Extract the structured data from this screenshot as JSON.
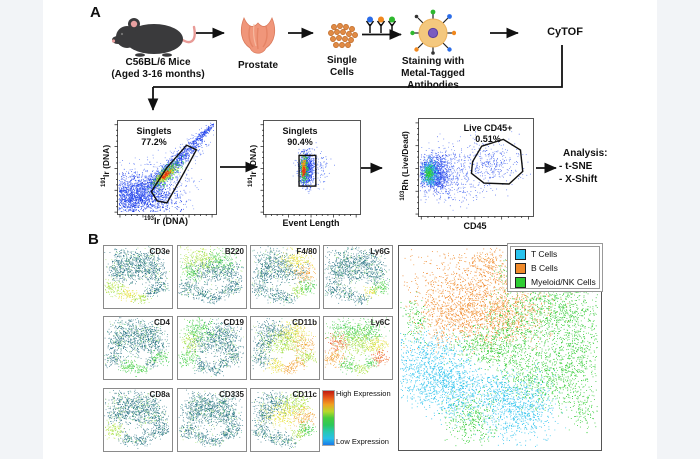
{
  "panel_a": {
    "label": "A",
    "mice_caption": [
      "C56BL/6 Mice",
      "(Aged 3-16 months)"
    ],
    "prostate_caption": "Prostate",
    "cells_caption": [
      "Single",
      "Cells"
    ],
    "staining_caption": [
      "Staining with",
      "Metal-Tagged",
      "Antibodies"
    ],
    "cytof_label": "CyTOF",
    "analysis": {
      "title": "Analysis:",
      "items": [
        "- t-SNE",
        "- X-Shift"
      ]
    }
  },
  "panel_b": {
    "label": "B"
  },
  "chart_data": {
    "flow_plots": [
      {
        "type": "scatter",
        "subtype": "density-flow",
        "gate_label": "Singlets",
        "gate_value": "77.2%",
        "xlabel": {
          "sup": "193",
          "text": "Ir (DNA)"
        },
        "ylabel": {
          "sup": "191",
          "text": "Ir (DNA)"
        },
        "clusters": [
          [
            "blueL",
            0.3,
            0.72,
            0.34,
            0.22,
            0,
            500
          ],
          [
            "blue",
            0.2,
            0.82,
            0.3,
            0.16,
            0,
            1600
          ],
          [
            "blue",
            0.55,
            0.5,
            0.36,
            0.05,
            -44,
            800
          ],
          [
            "blueL",
            0.58,
            0.47,
            0.4,
            0.09,
            -44,
            300
          ],
          [
            "blue",
            0.88,
            0.14,
            0.14,
            0.02,
            -44,
            160
          ],
          [
            "green",
            0.5,
            0.58,
            0.17,
            0.05,
            -44,
            330
          ],
          [
            "yellow",
            0.49,
            0.59,
            0.1,
            0.032,
            -44,
            200
          ],
          [
            "red",
            0.485,
            0.595,
            0.05,
            0.018,
            -44,
            90
          ]
        ],
        "gate": {
          "shape": "polygon",
          "points": [
            [
              0.4,
              0.86
            ],
            [
              0.34,
              0.76
            ],
            [
              0.5,
              0.5
            ],
            [
              0.7,
              0.26
            ],
            [
              0.8,
              0.31
            ],
            [
              0.65,
              0.6
            ],
            [
              0.5,
              0.88
            ]
          ]
        }
      },
      {
        "type": "scatter",
        "subtype": "density-flow",
        "gate_label": "Singlets",
        "gate_value": "90.4%",
        "xlabel": {
          "sup": "",
          "text": "Event Length"
        },
        "ylabel": {
          "sup": "191",
          "text": "Ir (DNA)"
        },
        "clusters": [
          [
            "blueL",
            0.5,
            0.52,
            0.13,
            0.16,
            0,
            280
          ],
          [
            "blue",
            0.445,
            0.52,
            0.055,
            0.13,
            0,
            650
          ],
          [
            "green",
            0.425,
            0.52,
            0.03,
            0.1,
            0,
            260
          ],
          [
            "orange",
            0.42,
            0.5,
            0.018,
            0.065,
            0,
            120
          ],
          [
            "red",
            0.42,
            0.54,
            0.012,
            0.045,
            0,
            70
          ]
        ],
        "gate": {
          "shape": "rect",
          "rect": [
            0.365,
            0.37,
            0.175,
            0.33
          ]
        }
      },
      {
        "type": "scatter",
        "subtype": "density-flow",
        "gate_label": "Live CD45+",
        "gate_value": "0.51%",
        "xlabel": {
          "sup": "",
          "text": "CD45"
        },
        "ylabel": {
          "sup": "103",
          "text": "Rh (Live/Dead)"
        },
        "clusters": [
          [
            "blue",
            0.13,
            0.57,
            0.1,
            0.14,
            0,
            950
          ],
          [
            "blueL",
            0.25,
            0.55,
            0.22,
            0.18,
            0,
            350
          ],
          [
            "cyan",
            0.095,
            0.57,
            0.05,
            0.095,
            0,
            330
          ],
          [
            "green",
            0.085,
            0.565,
            0.028,
            0.055,
            0,
            160
          ],
          [
            "blueS",
            0.55,
            0.48,
            0.3,
            0.22,
            0,
            260
          ],
          [
            "blueS",
            0.68,
            0.45,
            0.16,
            0.13,
            0,
            150
          ],
          [
            "blueS",
            0.3,
            0.8,
            0.25,
            0.1,
            0,
            90
          ]
        ],
        "gate": {
          "shape": "polygon",
          "points": [
            [
              0.47,
              0.44
            ],
            [
              0.55,
              0.28
            ],
            [
              0.74,
              0.21
            ],
            [
              0.89,
              0.32
            ],
            [
              0.91,
              0.54
            ],
            [
              0.79,
              0.67
            ],
            [
              0.57,
              0.66
            ],
            [
              0.46,
              0.56
            ]
          ]
        }
      }
    ],
    "flow_palette": {
      "blue": [
        "#1a3cf0",
        "#2348f0",
        "#2f55f2",
        "#1a30d8"
      ],
      "blueL": [
        "#5578f5",
        "#6f8cf7",
        "#4060f0"
      ],
      "blueS": [
        "#4565f2",
        "#6080f5",
        "#3a55e8"
      ],
      "green": [
        "#28c838",
        "#3ad040"
      ],
      "yellow": [
        "#e8e428",
        "#f0d820"
      ],
      "orange": [
        "#f09818",
        "#f5a822"
      ],
      "red": [
        "#e82810",
        "#f03818"
      ],
      "cyan": [
        "#28b8e8",
        "#30c8e0"
      ]
    },
    "tsne_markers": {
      "type": "scatter",
      "blobs": [
        [
          0.33,
          0.22,
          0.205,
          0.145,
          230
        ],
        [
          0.66,
          0.24,
          0.185,
          0.135,
          200
        ],
        [
          0.5,
          0.43,
          0.24,
          0.145,
          260
        ],
        [
          0.19,
          0.43,
          0.115,
          0.115,
          110
        ],
        [
          0.8,
          0.46,
          0.125,
          0.115,
          110
        ],
        [
          0.14,
          0.69,
          0.125,
          0.105,
          115
        ],
        [
          0.37,
          0.81,
          0.105,
          0.085,
          90
        ],
        [
          0.56,
          0.87,
          0.09,
          0.07,
          65
        ],
        [
          0.71,
          0.75,
          0.085,
          0.07,
          60
        ],
        [
          0.85,
          0.67,
          0.1,
          0.09,
          90
        ]
      ],
      "palette": {
        "dark": [
          "#1d6a7c",
          "#256f80",
          "#1a5f72",
          "#2c7a8c",
          "#226d7e",
          "#35889a",
          "#1d6a7c",
          "#2a7585",
          "#1a5f72",
          "#256f80",
          "#57c08a",
          "#9adf63"
        ],
        "green": [
          "#35cc3f",
          "#4cd348",
          "#2fc04a",
          "#63d94a"
        ],
        "ygreen": [
          "#9edc38",
          "#b4e43c",
          "#86d53e",
          "#c5ea42"
        ],
        "yellow": [
          "#e2e23e",
          "#ead83a",
          "#d5e542",
          "#f0e030"
        ],
        "orange": [
          "#f2a232",
          "#f5b03c",
          "#ea8f28",
          "#f0982a"
        ],
        "rorange": [
          "#ee6a28",
          "#e65020",
          "#f28334",
          "#e84018"
        ],
        "cyanb": [
          "#35c4e8",
          "#2ab8e0"
        ]
      },
      "plots": [
        {
          "label": "CD3e",
          "colors": [
            "dark",
            "dark",
            "dark",
            "dark",
            "dark",
            "ygreen",
            "yellow",
            "ygreen",
            "dark",
            "dark"
          ]
        },
        {
          "label": "B220",
          "colors": [
            "ygreen",
            "green",
            "dark",
            "green",
            "dark",
            "dark",
            "dark",
            "dark",
            "dark",
            "dark"
          ]
        },
        {
          "label": "F4/80",
          "colors": [
            "dark",
            "yellow",
            "dark",
            "dark",
            "orange",
            "dark",
            "dark",
            "dark",
            "ygreen",
            "green"
          ]
        },
        {
          "label": "Ly6G",
          "colors": [
            "dark",
            "dark",
            "dark",
            "dark",
            "dark",
            "dark",
            "dark",
            "dark",
            "yellow",
            "green"
          ]
        },
        {
          "label": "CD4",
          "colors": [
            "dark",
            "dark",
            "dark",
            "dark",
            "dark",
            "dark",
            "green",
            "green",
            "dark",
            "green"
          ]
        },
        {
          "label": "CD19",
          "colors": [
            "green",
            "dark",
            "dark",
            "ygreen",
            "dark",
            "green",
            "dark",
            "dark",
            "dark",
            "dark"
          ]
        },
        {
          "label": "CD11b",
          "colors": [
            "dark",
            "yellow",
            "ygreen",
            "dark",
            "orange",
            "dark",
            "yellow",
            "orange",
            "orange",
            "ygreen"
          ]
        },
        {
          "label": "Ly6C",
          "colors": [
            "green",
            "green",
            "ygreen",
            "rorange",
            "yellow",
            "orange",
            "green",
            "ygreen",
            "green",
            "rorange"
          ]
        },
        {
          "label": "CD8a",
          "colors": [
            "dark",
            "dark",
            "dark",
            "dark",
            "dark",
            "ygreen",
            "dark",
            "dark",
            "dark",
            "dark"
          ]
        },
        {
          "label": "CD335",
          "colors": [
            "dark",
            "dark",
            "dark",
            "dark",
            "dark",
            "dark",
            "dark",
            "dark",
            "dark",
            "dark"
          ]
        },
        {
          "label": "CD11c",
          "colors": [
            "dark",
            "ygreen",
            "yellow",
            "dark",
            "orange",
            "dark",
            "dark",
            "dark",
            "ygreen",
            "green"
          ]
        }
      ]
    },
    "colorbar": {
      "high_label": "High Expression",
      "low_label": "Low Expression",
      "gradient": [
        "#c01a10",
        "#e85a1a",
        "#f0a020",
        "#b8d82a",
        "#48cc3c",
        "#2cc85a",
        "#26c8b0",
        "#28c0e8",
        "#1a78e8"
      ]
    },
    "tsne_main": {
      "type": "scatter",
      "legend": [
        {
          "label": "T Cells",
          "color": "#29c3ee"
        },
        {
          "label": "B Cells",
          "color": "#f08a2b"
        },
        {
          "label": "Myeloid/NK Cells",
          "color": "#2ecd33"
        }
      ],
      "clusters": [
        {
          "color": "#f08a2b",
          "shades": [
            "#f08a2b",
            "#ee8124",
            "#f29a3c"
          ],
          "ellipses": [
            [
              0.41,
              0.25,
              0.26,
              0.17,
              1500
            ],
            [
              0.27,
              0.34,
              0.13,
              0.1,
              350
            ],
            [
              0.52,
              0.36,
              0.13,
              0.09,
              300
            ],
            [
              0.44,
              0.08,
              0.07,
              0.04,
              90
            ]
          ]
        },
        {
          "color": "#2ecd33",
          "shades": [
            "#2ecd33",
            "#27c22c",
            "#42d63f"
          ],
          "ellipses": [
            [
              0.76,
              0.28,
              0.19,
              0.13,
              700
            ],
            [
              0.86,
              0.52,
              0.13,
              0.18,
              700
            ],
            [
              0.7,
              0.66,
              0.14,
              0.11,
              450
            ],
            [
              0.57,
              0.46,
              0.13,
              0.12,
              450
            ],
            [
              0.41,
              0.5,
              0.11,
              0.07,
              250
            ],
            [
              0.36,
              0.86,
              0.095,
              0.1,
              350
            ],
            [
              0.075,
              0.37,
              0.05,
              0.09,
              120
            ],
            [
              0.6,
              0.13,
              0.08,
              0.05,
              120
            ],
            [
              0.93,
              0.8,
              0.06,
              0.08,
              120
            ]
          ]
        },
        {
          "color": "#29c3ee",
          "shades": [
            "#29c3ee",
            "#1fb9e8",
            "#45cef2"
          ],
          "ellipses": [
            [
              0.15,
              0.61,
              0.145,
              0.13,
              900
            ],
            [
              0.28,
              0.72,
              0.12,
              0.11,
              500
            ],
            [
              0.6,
              0.8,
              0.135,
              0.125,
              800
            ],
            [
              0.49,
              0.7,
              0.06,
              0.05,
              120
            ]
          ]
        }
      ]
    }
  }
}
